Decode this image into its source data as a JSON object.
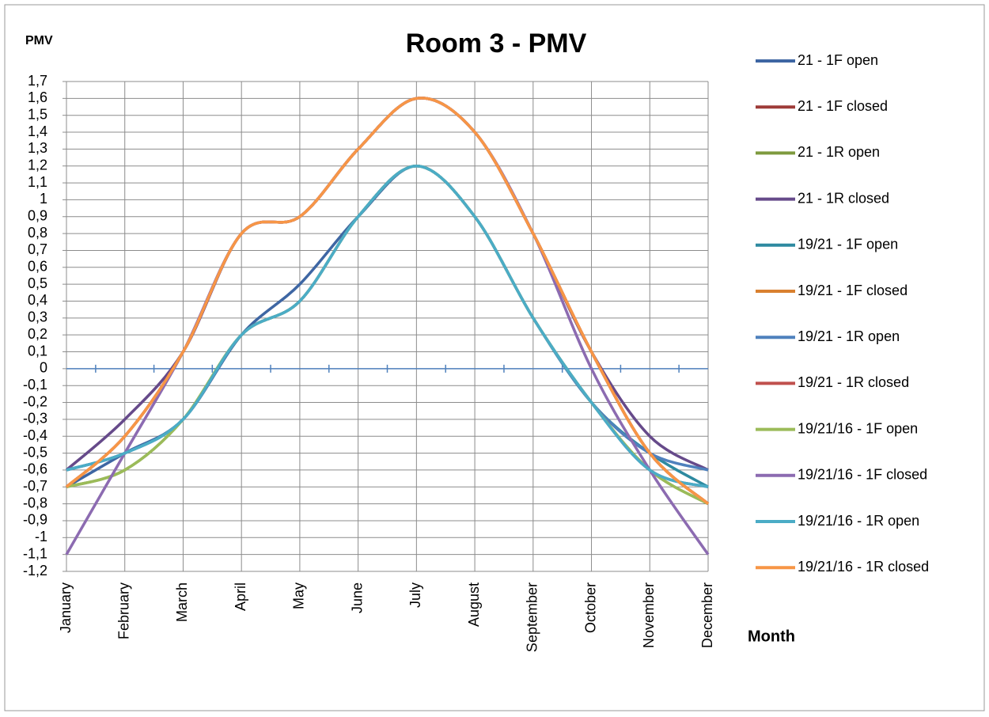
{
  "chart_data": {
    "type": "line",
    "title": "Room 3 - PMV",
    "y_label": "PMV",
    "x_label": "Month",
    "categories": [
      "January",
      "February",
      "March",
      "April",
      "May",
      "June",
      "July",
      "August",
      "September",
      "October",
      "November",
      "December"
    ],
    "ylim": [
      -1.2,
      1.7
    ],
    "yticks": [
      {
        "value": 1.7,
        "label": "1,7"
      },
      {
        "value": 1.6,
        "label": "1,6"
      },
      {
        "value": 1.5,
        "label": "1,5"
      },
      {
        "value": 1.4,
        "label": "1,4"
      },
      {
        "value": 1.3,
        "label": "1,3"
      },
      {
        "value": 1.2,
        "label": "1,2"
      },
      {
        "value": 1.1,
        "label": "1,1"
      },
      1,
      {
        "value": 0.9,
        "label": "0,9"
      },
      {
        "value": 0.8,
        "label": "0,8"
      },
      {
        "value": 0.7,
        "label": "0,7"
      },
      {
        "value": 0.6,
        "label": "0,6"
      },
      {
        "value": 0.5,
        "label": "0,5"
      },
      {
        "value": 0.4,
        "label": "0,4"
      },
      {
        "value": 0.3,
        "label": "0,3"
      },
      {
        "value": 0.2,
        "label": "0,2"
      },
      {
        "value": 0.1,
        "label": "0,1"
      },
      0,
      {
        "value": -0.1,
        "label": "-0,1"
      },
      {
        "value": -0.2,
        "label": "-0,2"
      },
      {
        "value": -0.3,
        "label": "-0,3"
      },
      {
        "value": -0.4,
        "label": "-0,4"
      },
      {
        "value": -0.5,
        "label": "-0,5"
      },
      {
        "value": -0.6,
        "label": "-0,6"
      },
      {
        "value": -0.7,
        "label": "-0,7"
      },
      {
        "value": -0.8,
        "label": "-0,8"
      },
      {
        "value": -0.9,
        "label": "-0,9"
      },
      -1,
      {
        "value": -1.1,
        "label": "-1,1"
      },
      {
        "value": -1.2,
        "label": "-1,2"
      }
    ],
    "grid": true,
    "legend": "right",
    "series": [
      {
        "name": "21 - 1F open",
        "color": "#3e66a3",
        "values": [
          -0.7,
          -0.5,
          -0.3,
          0.2,
          0.5,
          0.9,
          1.2,
          0.9,
          0.3,
          -0.2,
          -0.6,
          -0.7
        ]
      },
      {
        "name": "21 - 1F closed",
        "color": "#9e3b38",
        "values": [
          -0.7,
          -0.4,
          0.1,
          0.8,
          0.9,
          1.3,
          1.6,
          1.4,
          0.8,
          0.1,
          -0.5,
          -0.8
        ]
      },
      {
        "name": "21 - 1R open",
        "color": "#7e9a3e",
        "values": [
          -0.7,
          -0.6,
          -0.3,
          0.2,
          0.4,
          0.9,
          1.2,
          0.9,
          0.3,
          -0.2,
          -0.6,
          -0.8
        ]
      },
      {
        "name": "21 - 1R closed",
        "color": "#664a8a",
        "values": [
          -0.6,
          -0.3,
          0.1,
          0.8,
          0.9,
          1.3,
          1.6,
          1.4,
          0.8,
          0.1,
          -0.4,
          -0.6
        ]
      },
      {
        "name": "19/21 - 1F open",
        "color": "#2e8aa0",
        "values": [
          -0.6,
          -0.5,
          -0.3,
          0.2,
          0.4,
          0.9,
          1.2,
          0.9,
          0.3,
          -0.2,
          -0.5,
          -0.7
        ]
      },
      {
        "name": "19/21 - 1F closed",
        "color": "#d9802f",
        "values": [
          -0.7,
          -0.4,
          0.1,
          0.8,
          0.9,
          1.3,
          1.6,
          1.4,
          0.8,
          0.1,
          -0.5,
          -0.8
        ]
      },
      {
        "name": "19/21 - 1R open",
        "color": "#4f81bd",
        "values": [
          -0.6,
          -0.5,
          -0.3,
          0.2,
          0.4,
          0.9,
          1.2,
          0.9,
          0.3,
          -0.2,
          -0.5,
          -0.6
        ]
      },
      {
        "name": "19/21 - 1R closed",
        "color": "#c0504d",
        "values": [
          -0.7,
          -0.4,
          0.1,
          0.8,
          0.9,
          1.3,
          1.6,
          1.4,
          0.8,
          0.1,
          -0.5,
          -0.8
        ]
      },
      {
        "name": "19/21/16 - 1F open",
        "color": "#9bbb59",
        "values": [
          -0.7,
          -0.6,
          -0.3,
          0.2,
          0.4,
          0.9,
          1.2,
          0.9,
          0.3,
          -0.2,
          -0.6,
          -0.8
        ]
      },
      {
        "name": "19/21/16 - 1F closed",
        "color": "#8c6bb1",
        "values": [
          -1.1,
          -0.5,
          0.1,
          0.8,
          0.9,
          1.3,
          1.6,
          1.4,
          0.8,
          0.0,
          -0.6,
          -1.1
        ]
      },
      {
        "name": "19/21/16 - 1R open",
        "color": "#4bacc6",
        "values": [
          -0.6,
          -0.5,
          -0.3,
          0.2,
          0.4,
          0.9,
          1.2,
          0.9,
          0.3,
          -0.2,
          -0.6,
          -0.7
        ]
      },
      {
        "name": "19/21/16 - 1R closed",
        "color": "#f79646",
        "values": [
          -0.7,
          -0.4,
          0.1,
          0.8,
          0.9,
          1.3,
          1.6,
          1.4,
          0.8,
          0.1,
          -0.5,
          -0.8
        ]
      }
    ]
  }
}
